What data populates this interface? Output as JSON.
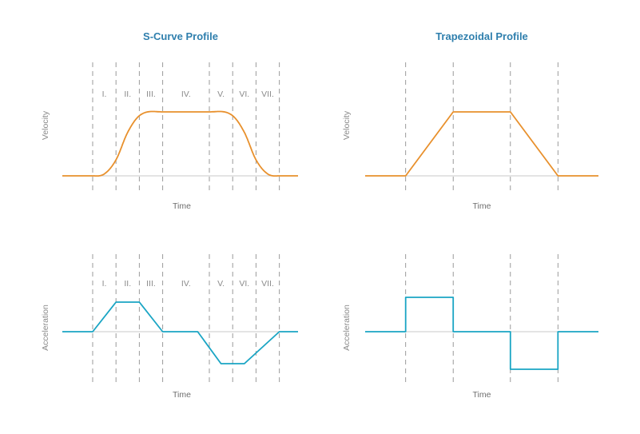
{
  "colors": {
    "velocity": "#e8902c",
    "acceleration": "#1aa5c4",
    "axis": "#c8c8c8",
    "guide": "#9a9a9a",
    "title": "#2f7fad"
  },
  "titles": {
    "s_curve": "S-Curve Profile",
    "trapezoidal": "Trapezoidal Profile"
  },
  "chart_data": [
    {
      "type": "line",
      "title": "S-Curve Profile",
      "xlabel": "Time",
      "ylabel": "Velocity",
      "phase_labels": [
        "I.",
        "II.",
        "III.",
        "IV.",
        "V.",
        "VI.",
        "VII."
      ],
      "phase_boundaries": [
        0,
        1,
        2,
        3,
        5,
        6,
        7,
        8
      ],
      "xlim": [
        -1.3,
        8.8
      ],
      "ylim": [
        0,
        1
      ],
      "series": [
        {
          "x": [
            -1.3,
            0,
            0.5,
            1,
            1.5,
            2,
            3,
            5,
            6,
            6.5,
            7,
            7.5,
            8,
            8.8
          ],
          "y": [
            0,
            0,
            0.03,
            0.25,
            0.68,
            0.94,
            1,
            1,
            0.94,
            0.68,
            0.25,
            0.03,
            0,
            0
          ]
        }
      ]
    },
    {
      "type": "line",
      "title": "S-Curve Profile",
      "xlabel": "Time",
      "ylabel": "Acceleration",
      "phase_labels": [
        "I.",
        "II.",
        "III.",
        "IV.",
        "V.",
        "VI.",
        "VII."
      ],
      "phase_boundaries": [
        0,
        1,
        2,
        3,
        5,
        6,
        7,
        8
      ],
      "xlim": [
        -1.3,
        8.8
      ],
      "ylim": [
        -1,
        1
      ],
      "series": [
        {
          "x": [
            -1.3,
            0,
            1,
            2,
            3,
            4.5,
            5.5,
            6.5,
            8,
            8.8
          ],
          "y": [
            0,
            0,
            1,
            1,
            0,
            0,
            -1,
            -1,
            0,
            0
          ]
        }
      ]
    },
    {
      "type": "line",
      "title": "Trapezoidal Profile",
      "xlabel": "Time",
      "ylabel": "Velocity",
      "phase_boundaries": [
        0,
        1,
        2.2,
        3.2
      ],
      "xlim": [
        -0.85,
        4.05
      ],
      "ylim": [
        0,
        1
      ],
      "series": [
        {
          "x": [
            -0.85,
            0,
            1,
            2.2,
            3.2,
            4.05
          ],
          "y": [
            0,
            0,
            1,
            1,
            0,
            0
          ]
        }
      ]
    },
    {
      "type": "line",
      "title": "Trapezoidal Profile",
      "xlabel": "Time",
      "ylabel": "Acceleration",
      "phase_boundaries": [
        0,
        1,
        2.2,
        3.2
      ],
      "xlim": [
        -0.85,
        4.05
      ],
      "ylim": [
        -1,
        1
      ],
      "series": [
        {
          "x": [
            -0.85,
            0,
            0,
            1,
            1,
            2.2,
            2.2,
            3.2,
            3.2,
            4.05
          ],
          "y": [
            0,
            0,
            1,
            1,
            0,
            0,
            -1,
            -1,
            0,
            0
          ]
        }
      ]
    }
  ]
}
